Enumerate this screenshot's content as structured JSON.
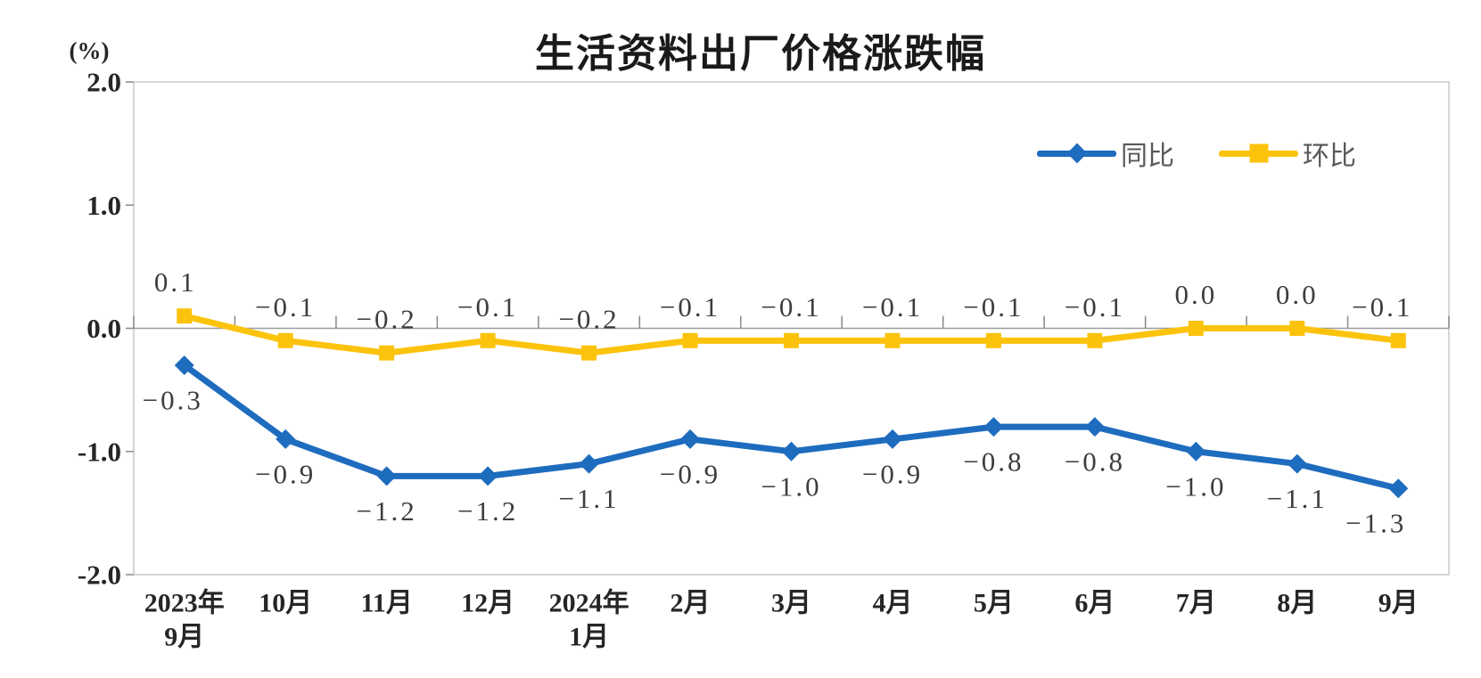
{
  "title": "生活资料出厂价格涨跌幅",
  "y_axis": {
    "unit_label": "(%)",
    "tick_labels": [
      "2.0",
      "1.0",
      "0.0",
      "-1.0",
      "-2.0"
    ]
  },
  "legend": [
    {
      "name": "同比",
      "color": "#1e6cbe",
      "marker": "diamond"
    },
    {
      "name": "环比",
      "color": "#fcc30d",
      "marker": "square"
    }
  ],
  "chart_data": {
    "type": "line",
    "title": "生活资料出厂价格涨跌幅",
    "categories": [
      [
        "2023年",
        "9月"
      ],
      [
        "10月"
      ],
      [
        "11月"
      ],
      [
        "12月"
      ],
      [
        "2024年",
        "1月"
      ],
      [
        "2月"
      ],
      [
        "3月"
      ],
      [
        "4月"
      ],
      [
        "5月"
      ],
      [
        "6月"
      ],
      [
        "7月"
      ],
      [
        "8月"
      ],
      [
        "9月"
      ]
    ],
    "series": [
      {
        "name": "同比",
        "marker": "diamond",
        "color": "#1e6cbe",
        "values": [
          -0.3,
          -0.9,
          -1.2,
          -1.2,
          -1.1,
          -0.9,
          -1.0,
          -0.9,
          -0.8,
          -0.8,
          -1.0,
          -1.1,
          -1.3
        ]
      },
      {
        "name": "环比",
        "marker": "square",
        "color": "#fcc30d",
        "values": [
          0.1,
          -0.1,
          -0.2,
          -0.1,
          -0.2,
          -0.1,
          -0.1,
          -0.1,
          -0.1,
          -0.1,
          0.0,
          0.0,
          -0.1
        ]
      }
    ],
    "ylim": [
      -2.0,
      2.0
    ],
    "y_unit": "(%)",
    "grid": false,
    "legend_position": "top-right",
    "data_labels": true
  }
}
